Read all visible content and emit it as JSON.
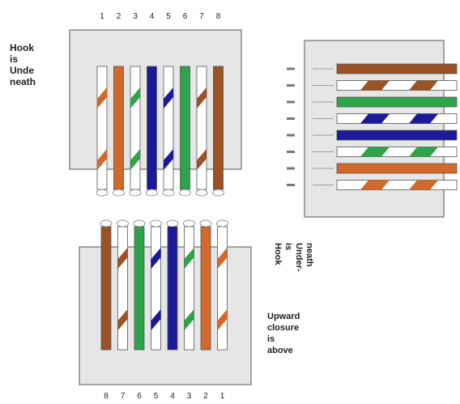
{
  "labels": {
    "top_left": [
      "Hook",
      "is",
      "Unde",
      "neath"
    ],
    "right_vertical": [
      "Hook",
      "is",
      "Under-",
      "neath"
    ],
    "bottom_right": [
      "Upward",
      "closure",
      "is",
      "above"
    ]
  },
  "top_pin_numbers": [
    "1",
    "2",
    "3",
    "4",
    "5",
    "6",
    "7",
    "8"
  ],
  "bottom_pin_numbers": [
    "8",
    "7",
    "6",
    "5",
    "4",
    "3",
    "2",
    "1"
  ],
  "colors": {
    "orange": "#d2692b",
    "brown": "#9b5224",
    "green": "#2ea34a",
    "blue": "#1b1b9a",
    "connector_body": "#e6e6e6",
    "connector_border": "#888888"
  },
  "top_wires": [
    {
      "color": "orange",
      "striped": true
    },
    {
      "color": "orange",
      "striped": false
    },
    {
      "color": "green",
      "striped": true
    },
    {
      "color": "blue",
      "striped": false
    },
    {
      "color": "blue",
      "striped": true
    },
    {
      "color": "green",
      "striped": false
    },
    {
      "color": "brown",
      "striped": true
    },
    {
      "color": "brown",
      "striped": false
    }
  ],
  "side_wires": [
    {
      "color": "brown",
      "striped": false
    },
    {
      "color": "brown",
      "striped": true
    },
    {
      "color": "green",
      "striped": false
    },
    {
      "color": "blue",
      "striped": true
    },
    {
      "color": "blue",
      "striped": false
    },
    {
      "color": "green",
      "striped": true
    },
    {
      "color": "orange",
      "striped": false
    },
    {
      "color": "orange",
      "striped": true
    }
  ],
  "bottom_wires": [
    {
      "color": "brown",
      "striped": false
    },
    {
      "color": "brown",
      "striped": true
    },
    {
      "color": "green",
      "striped": false
    },
    {
      "color": "blue",
      "striped": true
    },
    {
      "color": "blue",
      "striped": false
    },
    {
      "color": "green",
      "striped": true
    },
    {
      "color": "orange",
      "striped": false
    },
    {
      "color": "orange",
      "striped": true
    }
  ]
}
